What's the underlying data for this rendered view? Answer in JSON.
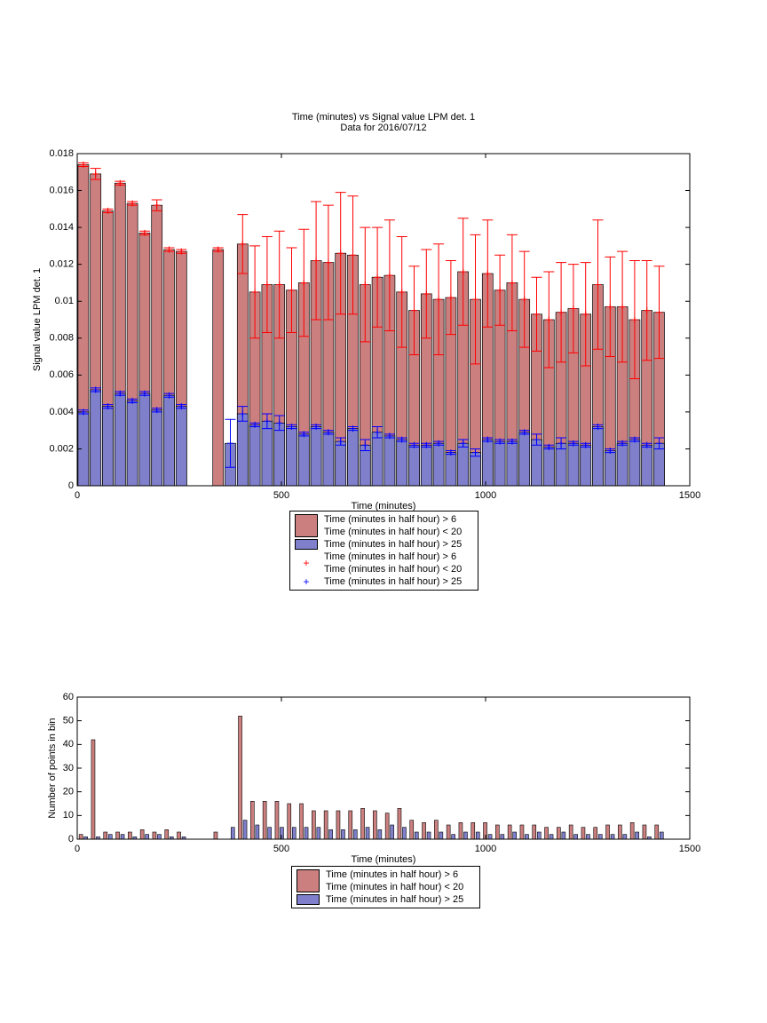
{
  "chart_data": [
    {
      "type": "bar",
      "title": "Time (minutes) vs Signal value LPM det. 1",
      "subtitle": "Data for 2016/07/12",
      "xlabel": "Time (minutes)",
      "ylabel": "Signal value LPM det. 1",
      "x": [
        15,
        45,
        75,
        105,
        135,
        165,
        195,
        225,
        255,
        285,
        315,
        345,
        375,
        405,
        435,
        465,
        495,
        525,
        555,
        585,
        615,
        645,
        675,
        705,
        735,
        765,
        795,
        825,
        855,
        885,
        915,
        945,
        975,
        1005,
        1035,
        1065,
        1095,
        1125,
        1155,
        1185,
        1215,
        1245,
        1275,
        1305,
        1335,
        1365,
        1395,
        1425
      ],
      "xlim": [
        0,
        1500
      ],
      "xticks": [
        0,
        500,
        1000,
        1500
      ],
      "ylim": [
        0,
        0.018
      ],
      "yticks": [
        0,
        0.002,
        0.004,
        0.006,
        0.008,
        0.01,
        0.012,
        0.014,
        0.016,
        0.018
      ],
      "series": [
        {
          "name": "Time (minutes in half hour) > 6\nTime (minutes in half hour) < 20",
          "color": "#cc7f7f",
          "error_color": "#ff0000",
          "values": [
            0.0174,
            0.0169,
            0.0149,
            0.0164,
            0.0153,
            0.0137,
            0.0152,
            0.0128,
            0.0127,
            null,
            null,
            0.0128,
            null,
            0.0131,
            0.0105,
            0.0109,
            0.0109,
            0.0106,
            0.011,
            0.0122,
            0.0121,
            0.0126,
            0.0125,
            0.0109,
            0.0113,
            0.0114,
            0.0105,
            0.0095,
            0.0104,
            0.0101,
            0.0102,
            0.0116,
            0.0101,
            0.0115,
            0.0106,
            0.011,
            0.0101,
            0.0093,
            0.009,
            0.0094,
            0.0096,
            0.0093,
            0.0109,
            0.0097,
            0.0097,
            0.009,
            0.0095,
            0.0094
          ],
          "errors": [
            0.0001,
            0.0003,
            0.0001,
            0.0001,
            0.0001,
            0.0001,
            0.0003,
            0.0001,
            0.0001,
            null,
            null,
            0.0001,
            null,
            0.0016,
            0.0025,
            0.0026,
            0.0029,
            0.0023,
            0.0029,
            0.0032,
            0.0031,
            0.0033,
            0.0032,
            0.0031,
            0.0027,
            0.003,
            0.003,
            0.0024,
            0.0024,
            0.003,
            0.002,
            0.0029,
            0.0035,
            0.0029,
            0.0019,
            0.0026,
            0.0026,
            0.002,
            0.0026,
            0.0027,
            0.0024,
            0.0028,
            0.0035,
            0.0027,
            0.003,
            0.0032,
            0.0027,
            0.0025
          ]
        },
        {
          "name": "Time (minutes in half hour) > 25",
          "color": "#7f7fcc",
          "error_color": "#0000ff",
          "values": [
            0.004,
            0.0052,
            0.0043,
            0.005,
            0.0046,
            0.005,
            0.0041,
            0.0049,
            0.0043,
            null,
            null,
            null,
            0.0023,
            0.0039,
            0.0033,
            0.0035,
            0.0034,
            0.0032,
            0.0028,
            0.0032,
            0.0029,
            0.0024,
            0.0031,
            0.0022,
            0.0029,
            0.0027,
            0.0025,
            0.0022,
            0.0022,
            0.0023,
            0.0018,
            0.0023,
            0.0018,
            0.0025,
            0.0024,
            0.0024,
            0.0029,
            0.0025,
            0.0021,
            0.0023,
            0.0023,
            0.0022,
            0.0032,
            0.0019,
            0.0023,
            0.0025,
            0.0022,
            0.0023
          ],
          "errors": [
            0.0001,
            0.0001,
            0.0001,
            0.0001,
            0.0001,
            0.0001,
            0.0001,
            0.0001,
            0.0001,
            null,
            null,
            null,
            0.0013,
            0.0004,
            0.0001,
            0.0004,
            0.0004,
            0.0001,
            0.0001,
            0.0001,
            0.0001,
            0.0002,
            0.0001,
            0.0003,
            0.0003,
            0.0001,
            0.0001,
            0.0001,
            0.0001,
            0.0001,
            0.0001,
            0.0002,
            0.0002,
            0.0001,
            0.0001,
            0.0001,
            0.0001,
            0.0003,
            0.0001,
            0.0003,
            0.0001,
            0.0001,
            0.0001,
            0.0001,
            0.0001,
            0.0001,
            0.0001,
            0.0003
          ]
        }
      ]
    },
    {
      "type": "grouped_bar",
      "xlabel": "Time (minutes)",
      "ylabel": "Number of points in bin",
      "x": [
        15,
        45,
        75,
        105,
        135,
        165,
        195,
        225,
        255,
        285,
        315,
        345,
        375,
        405,
        435,
        465,
        495,
        525,
        555,
        585,
        615,
        645,
        675,
        705,
        735,
        765,
        795,
        825,
        855,
        885,
        915,
        945,
        975,
        1005,
        1035,
        1065,
        1095,
        1125,
        1155,
        1185,
        1215,
        1245,
        1275,
        1305,
        1335,
        1365,
        1395,
        1425
      ],
      "xlim": [
        0,
        1500
      ],
      "xticks": [
        0,
        500,
        1000,
        1500
      ],
      "ylim": [
        0,
        60
      ],
      "yticks": [
        0,
        10,
        20,
        30,
        40,
        50,
        60
      ],
      "series": [
        {
          "name": "Time (minutes in half hour) > 6\nTime (minutes in half hour) < 20",
          "color": "#cc7f7f",
          "values": [
            2,
            42,
            3,
            3,
            3,
            4,
            3,
            4,
            3,
            0,
            0,
            3,
            0,
            52,
            16,
            16,
            16,
            15,
            15,
            12,
            12,
            12,
            12,
            13,
            12,
            11,
            13,
            8,
            7,
            8,
            6,
            7,
            7,
            7,
            6,
            6,
            6,
            6,
            5,
            5,
            6,
            5,
            5,
            6,
            6,
            7,
            6,
            6
          ]
        },
        {
          "name": "Time (minutes in half hour) > 25",
          "color": "#7f7fcc",
          "values": [
            1,
            1,
            2,
            2,
            1,
            2,
            2,
            1,
            1,
            0,
            0,
            0,
            5,
            8,
            6,
            5,
            5,
            5,
            5,
            5,
            4,
            4,
            4,
            5,
            4,
            6,
            5,
            3,
            3,
            3,
            2,
            3,
            3,
            2,
            2,
            3,
            2,
            3,
            2,
            3,
            2,
            2,
            2,
            2,
            2,
            3,
            1,
            3
          ]
        }
      ]
    }
  ]
}
